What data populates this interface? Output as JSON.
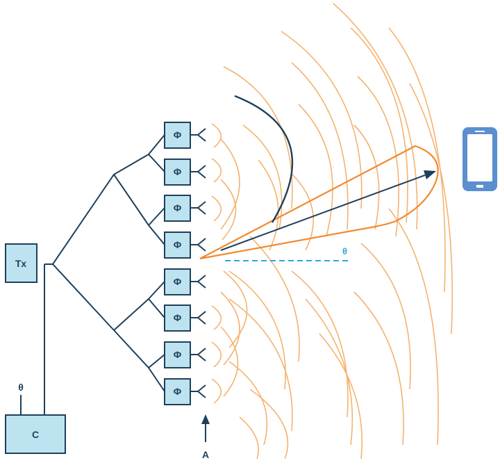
{
  "diagram": {
    "title": "",
    "transmitter": {
      "label": "Tx"
    },
    "controller": {
      "label": "C",
      "input_label": "θ"
    },
    "phase_shifters": [
      {
        "label": "Φ"
      },
      {
        "label": "Φ"
      },
      {
        "label": "Φ"
      },
      {
        "label": "Φ"
      },
      {
        "label": "Φ"
      },
      {
        "label": "Φ"
      },
      {
        "label": "Φ"
      },
      {
        "label": "Φ"
      }
    ],
    "steering_angle_label": "θ",
    "array_marker_label": "A",
    "target_device": "phone-icon",
    "colors": {
      "line": "#1e3f5a",
      "box_fill": "#bde3f0",
      "wave": "#f5b26f",
      "beam": "#ef8a2f",
      "angle_dash": "#2aa8d6",
      "phone": "#5b8fd0"
    }
  }
}
